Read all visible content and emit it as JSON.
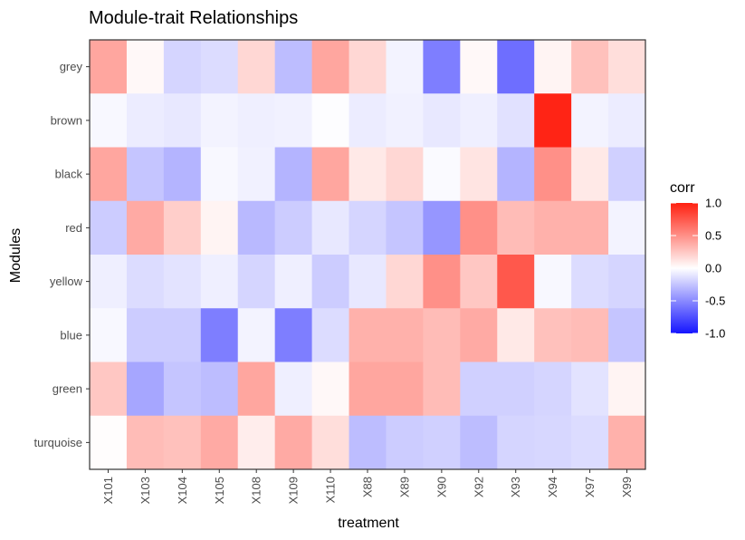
{
  "chart_data": {
    "type": "heatmap",
    "title": "Module-trait Relationships",
    "xlabel": "treatment",
    "ylabel": "Modules",
    "x": [
      "X101",
      "X103",
      "X104",
      "X105",
      "X108",
      "X109",
      "X110",
      "X88",
      "X89",
      "X90",
      "X92",
      "X93",
      "X94",
      "X97",
      "X99"
    ],
    "y": [
      "grey",
      "brown",
      "black",
      "red",
      "yellow",
      "blue",
      "green",
      "turquoise"
    ],
    "values": [
      [
        0.4,
        0.03,
        -0.18,
        -0.15,
        0.18,
        -0.28,
        0.4,
        0.18,
        -0.05,
        -0.55,
        0.03,
        -0.62,
        0.05,
        0.28,
        0.15
      ],
      [
        -0.03,
        -0.08,
        -0.1,
        -0.05,
        -0.07,
        -0.06,
        -0.01,
        -0.08,
        -0.06,
        -0.1,
        -0.07,
        -0.13,
        0.98,
        -0.05,
        -0.08
      ],
      [
        0.4,
        -0.25,
        -0.32,
        -0.03,
        -0.06,
        -0.32,
        0.4,
        0.1,
        0.18,
        -0.02,
        0.12,
        -0.32,
        0.5,
        0.1,
        -0.2
      ],
      [
        -0.22,
        0.38,
        0.22,
        0.05,
        -0.3,
        -0.22,
        -0.1,
        -0.18,
        -0.25,
        -0.45,
        0.5,
        0.3,
        0.35,
        0.35,
        -0.05
      ],
      [
        -0.07,
        -0.15,
        -0.12,
        -0.07,
        -0.18,
        -0.07,
        -0.22,
        -0.1,
        0.18,
        0.5,
        0.25,
        0.75,
        -0.03,
        -0.15,
        -0.18
      ],
      [
        -0.03,
        -0.22,
        -0.22,
        -0.55,
        -0.05,
        -0.55,
        -0.15,
        0.35,
        0.35,
        0.3,
        0.38,
        0.1,
        0.28,
        0.3,
        -0.25
      ],
      [
        0.25,
        -0.38,
        -0.25,
        -0.28,
        0.4,
        -0.07,
        0.03,
        0.4,
        0.4,
        0.3,
        -0.2,
        -0.2,
        -0.18,
        -0.12,
        0.05
      ],
      [
        0.01,
        0.3,
        0.28,
        0.38,
        0.08,
        0.38,
        0.15,
        -0.28,
        -0.22,
        -0.2,
        -0.28,
        -0.18,
        -0.17,
        -0.15,
        0.35
      ]
    ],
    "colorbar": {
      "title": "corr",
      "ticks": [
        "1.0",
        "0.5",
        "0.0",
        "-0.5",
        "-1.0"
      ],
      "min": -1.0,
      "max": 1.0
    },
    "colors": {
      "low": "#1515ff",
      "mid": "#ffffff",
      "high": "#ff2010"
    },
    "legend_position": "right",
    "grid": true
  }
}
